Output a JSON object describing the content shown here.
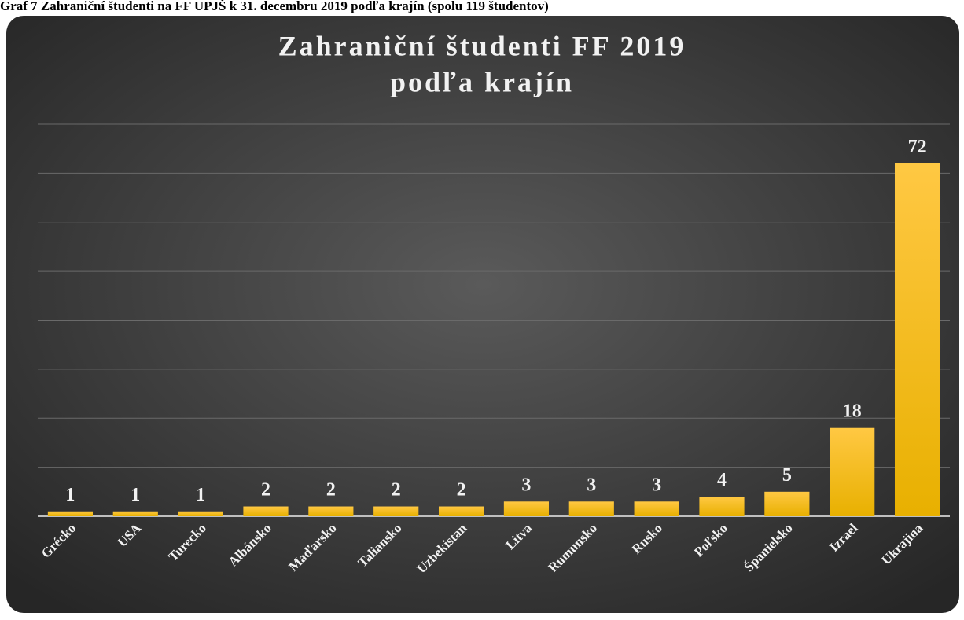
{
  "caption": "Graf 7 Zahraniční študenti na FF UPJŠ k 31. decembru 2019 podľa krajín (spolu 119 študentov)",
  "chart_data": {
    "type": "bar",
    "title": [
      "Zahraniční študenti FF 2019",
      "podľa krajín"
    ],
    "categories": [
      "Grécko",
      "USA",
      "Turecko",
      "Albánsko",
      "Maďarsko",
      "Taliansko",
      "Uzbekistan",
      "Litva",
      "Rumunsko",
      "Rusko",
      "Poľsko",
      "Španielsko",
      "Izrael",
      "Ukrajina"
    ],
    "values": [
      1,
      1,
      1,
      2,
      2,
      2,
      2,
      3,
      3,
      3,
      4,
      5,
      18,
      72
    ],
    "color": "#ffc000",
    "ylim": [
      0,
      80
    ],
    "yticks": [
      0,
      10,
      20,
      30,
      40,
      50,
      60,
      70,
      80
    ],
    "grid": true
  }
}
